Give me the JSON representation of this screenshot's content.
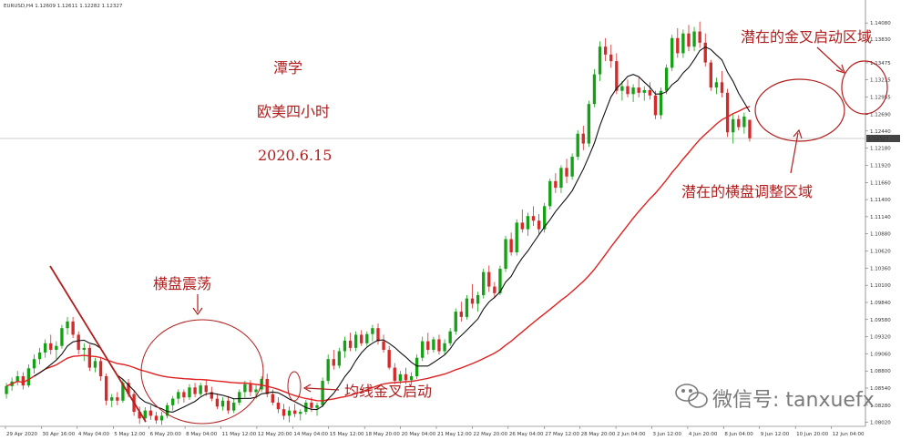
{
  "header": "EURUSD,H4  1.12609 1.12611 1.12282 1.12327",
  "watermark": "微信号: tanxuefx",
  "colors": {
    "up": "#16a016",
    "down": "#d42a2a",
    "ma_fast": "#111111",
    "ma_slow": "#e02020",
    "annotation": "#b01e1e",
    "current_price_bg": "#444444"
  },
  "annotations": {
    "author": "潭学",
    "pair_timeframe": "欧美四小时",
    "date": "2020.6.15",
    "consolidation": "横盘震荡",
    "golden_cross_start": "均线金叉启动",
    "potential_consolidation_zone": "潜在的横盘调整区域",
    "potential_golden_cross_zone": "潜在的金叉启动区域"
  },
  "chart_data": {
    "type": "candlestick",
    "symbol": "EURUSD",
    "timeframe": "H4",
    "ohlc_header": {
      "open": 1.12609,
      "high": 1.12611,
      "low": 1.12282,
      "close": 1.12327
    },
    "ylim": [
      1.0796,
      1.144
    ],
    "current_price": 1.12327,
    "y_ticks": [
      "1.14080",
      "1.13830",
      "1.13475",
      "1.13215",
      "1.12955",
      "1.12690",
      "1.12440",
      "1.12180",
      "1.11920",
      "1.11660",
      "1.11400",
      "1.11140",
      "1.10880",
      "1.10620",
      "1.10360",
      "1.10100",
      "1.09840",
      "1.09580",
      "1.09320",
      "1.09060",
      "1.08800",
      "1.08540",
      "1.08280",
      "1.08020"
    ],
    "x_ticks": [
      "29 Apr 2020",
      "30 Apr 16:00",
      "4 May 04:00",
      "5 May 12:00",
      "6 May 20:00",
      "8 May 04:00",
      "11 May 12:00",
      "12 May 20:00",
      "14 May 04:00",
      "15 May 12:00",
      "18 May 20:00",
      "20 May 04:00",
      "21 May 12:00",
      "22 May 20:00",
      "26 May 04:00",
      "27 May 12:00",
      "28 May 20:00",
      "2 Jun 04:00",
      "3 Jun 12:00",
      "4 Jun 20:00",
      "8 Jun 04:00",
      "9 Jun 12:00",
      "10 Jun 20:00",
      "12 Jun 04:00"
    ],
    "series": [
      {
        "name": "MA fast",
        "role": "ma_fast"
      },
      {
        "name": "MA slow",
        "role": "ma_slow"
      }
    ],
    "candles": [
      [
        1.0845,
        1.0862,
        1.0838,
        1.0857
      ],
      [
        1.0857,
        1.087,
        1.085,
        1.0864
      ],
      [
        1.0864,
        1.088,
        1.0858,
        1.0872
      ],
      [
        1.0872,
        1.0878,
        1.0852,
        1.0858
      ],
      [
        1.0858,
        1.089,
        1.0855,
        1.0884
      ],
      [
        1.0884,
        1.0905,
        1.0876,
        1.0898
      ],
      [
        1.0898,
        1.0915,
        1.089,
        1.0908
      ],
      [
        1.0908,
        1.0928,
        1.09,
        1.0922
      ],
      [
        1.0922,
        1.0935,
        1.0905,
        1.0912
      ],
      [
        1.0912,
        1.0925,
        1.0898,
        1.0918
      ],
      [
        1.0918,
        1.095,
        1.0914,
        1.0945
      ],
      [
        1.0945,
        1.0962,
        1.0935,
        1.0955
      ],
      [
        1.0955,
        1.0962,
        1.093,
        1.0935
      ],
      [
        1.0935,
        1.094,
        1.0905,
        1.0912
      ],
      [
        1.0912,
        1.0922,
        1.0895,
        1.0915
      ],
      [
        1.0915,
        1.092,
        1.088,
        1.0885
      ],
      [
        1.0885,
        1.09,
        1.0878,
        1.0895
      ],
      [
        1.0895,
        1.09,
        1.0865,
        1.0872
      ],
      [
        1.0872,
        1.0876,
        1.0828,
        1.0835
      ],
      [
        1.0835,
        1.0845,
        1.0825,
        1.084
      ],
      [
        1.084,
        1.0848,
        1.0828,
        1.0835
      ],
      [
        1.0835,
        1.0868,
        1.0832,
        1.0862
      ],
      [
        1.0862,
        1.0868,
        1.084,
        1.0845
      ],
      [
        1.0845,
        1.085,
        1.0812,
        1.0818
      ],
      [
        1.0818,
        1.0826,
        1.08,
        1.0808
      ],
      [
        1.0808,
        1.0825,
        1.0802,
        1.082
      ],
      [
        1.082,
        1.0828,
        1.0806,
        1.0812
      ],
      [
        1.0812,
        1.0818,
        1.08,
        1.0805
      ],
      [
        1.0805,
        1.0818,
        1.0798,
        1.0812
      ],
      [
        1.0812,
        1.0832,
        1.0808,
        1.0828
      ],
      [
        1.0828,
        1.0842,
        1.082,
        1.0838
      ],
      [
        1.0838,
        1.0852,
        1.083,
        1.0848
      ],
      [
        1.0848,
        1.0852,
        1.0832,
        1.084
      ],
      [
        1.084,
        1.086,
        1.0836,
        1.0855
      ],
      [
        1.0855,
        1.0862,
        1.084,
        1.0845
      ],
      [
        1.0845,
        1.0862,
        1.0842,
        1.0858
      ],
      [
        1.0858,
        1.0866,
        1.0842,
        1.0848
      ],
      [
        1.0848,
        1.0856,
        1.0834,
        1.0838
      ],
      [
        1.0838,
        1.0846,
        1.0822,
        1.0826
      ],
      [
        1.0826,
        1.084,
        1.082,
        1.0835
      ],
      [
        1.0835,
        1.0842,
        1.0815,
        1.082
      ],
      [
        1.082,
        1.0838,
        1.0816,
        1.0832
      ],
      [
        1.0832,
        1.0852,
        1.0828,
        1.0848
      ],
      [
        1.0848,
        1.0865,
        1.084,
        1.086
      ],
      [
        1.086,
        1.0866,
        1.0842,
        1.0848
      ],
      [
        1.0848,
        1.0858,
        1.0838,
        1.0852
      ],
      [
        1.0852,
        1.0872,
        1.0848,
        1.0868
      ],
      [
        1.0868,
        1.0876,
        1.084,
        1.0845
      ],
      [
        1.0845,
        1.0852,
        1.0828,
        1.0832
      ],
      [
        1.0832,
        1.084,
        1.0816,
        1.0822
      ],
      [
        1.0822,
        1.083,
        1.0806,
        1.0812
      ],
      [
        1.0812,
        1.0826,
        1.0802,
        1.082
      ],
      [
        1.082,
        1.083,
        1.081,
        1.0815
      ],
      [
        1.0815,
        1.0822,
        1.0805,
        1.0818
      ],
      [
        1.0818,
        1.0836,
        1.0814,
        1.0832
      ],
      [
        1.0832,
        1.084,
        1.0818,
        1.0824
      ],
      [
        1.0824,
        1.0832,
        1.0812,
        1.0828
      ],
      [
        1.0828,
        1.087,
        1.0825,
        1.0865
      ],
      [
        1.0865,
        1.0905,
        1.086,
        1.0898
      ],
      [
        1.0898,
        1.0912,
        1.0882,
        1.0888
      ],
      [
        1.0888,
        1.0915,
        1.0884,
        1.091
      ],
      [
        1.091,
        1.0932,
        1.09,
        1.0926
      ],
      [
        1.0926,
        1.0938,
        1.091,
        1.0915
      ],
      [
        1.0915,
        1.094,
        1.091,
        1.0935
      ],
      [
        1.0935,
        1.0942,
        1.0918,
        1.0922
      ],
      [
        1.0922,
        1.094,
        1.0918,
        1.0936
      ],
      [
        1.0936,
        1.095,
        1.0925,
        1.0945
      ],
      [
        1.0945,
        1.0952,
        1.092,
        1.0925
      ],
      [
        1.0925,
        1.0935,
        1.0908,
        1.0912
      ],
      [
        1.0912,
        1.0918,
        1.0882,
        1.0885
      ],
      [
        1.0885,
        1.0892,
        1.086,
        1.0865
      ],
      [
        1.0865,
        1.088,
        1.086,
        1.0875
      ],
      [
        1.0875,
        1.0885,
        1.086,
        1.0866
      ],
      [
        1.0866,
        1.0878,
        1.0858,
        1.0872
      ],
      [
        1.0872,
        1.0905,
        1.0868,
        1.09
      ],
      [
        1.09,
        1.0932,
        1.0895,
        1.0925
      ],
      [
        1.0925,
        1.0938,
        1.0905,
        1.0912
      ],
      [
        1.0912,
        1.0932,
        1.0908,
        1.0928
      ],
      [
        1.0928,
        1.0935,
        1.0905,
        1.091
      ],
      [
        1.091,
        1.0928,
        1.0905,
        1.0922
      ],
      [
        1.0922,
        1.0945,
        1.0918,
        1.094
      ],
      [
        1.094,
        1.0975,
        1.0935,
        1.097
      ],
      [
        1.097,
        1.0985,
        1.0955,
        1.0962
      ],
      [
        1.0962,
        1.0995,
        1.0958,
        1.099
      ],
      [
        1.099,
        1.1012,
        1.0975,
        1.0982
      ],
      [
        1.0982,
        1.1,
        1.097,
        1.0995
      ],
      [
        1.0995,
        1.1035,
        1.099,
        1.103
      ],
      [
        1.103,
        1.104,
        1.1,
        1.1008
      ],
      [
        1.1008,
        1.1015,
        1.099,
        1.0998
      ],
      [
        1.0998,
        1.104,
        1.0995,
        1.1035
      ],
      [
        1.1035,
        1.1085,
        1.103,
        1.108
      ],
      [
        1.108,
        1.109,
        1.1055,
        1.106
      ],
      [
        1.106,
        1.111,
        1.1055,
        1.1105
      ],
      [
        1.1105,
        1.1125,
        1.109,
        1.1095
      ],
      [
        1.1095,
        1.112,
        1.1085,
        1.1115
      ],
      [
        1.1115,
        1.113,
        1.11,
        1.1108
      ],
      [
        1.1108,
        1.1118,
        1.1088,
        1.1095
      ],
      [
        1.1095,
        1.1135,
        1.109,
        1.113
      ],
      [
        1.113,
        1.1172,
        1.1125,
        1.1168
      ],
      [
        1.1168,
        1.118,
        1.115,
        1.1158
      ],
      [
        1.1158,
        1.1192,
        1.115,
        1.1188
      ],
      [
        1.1188,
        1.1202,
        1.1165,
        1.1175
      ],
      [
        1.1175,
        1.121,
        1.117,
        1.1205
      ],
      [
        1.1205,
        1.1245,
        1.12,
        1.124
      ],
      [
        1.124,
        1.1252,
        1.1215,
        1.1225
      ],
      [
        1.1225,
        1.129,
        1.122,
        1.1285
      ],
      [
        1.1285,
        1.1338,
        1.128,
        1.133
      ],
      [
        1.133,
        1.138,
        1.132,
        1.1372
      ],
      [
        1.1372,
        1.1385,
        1.135,
        1.136
      ],
      [
        1.136,
        1.1375,
        1.134,
        1.135
      ],
      [
        1.135,
        1.1362,
        1.13,
        1.1305
      ],
      [
        1.1305,
        1.132,
        1.129,
        1.1312
      ],
      [
        1.1312,
        1.1322,
        1.1295,
        1.13
      ],
      [
        1.13,
        1.1315,
        1.1288,
        1.131
      ],
      [
        1.131,
        1.1325,
        1.1295,
        1.1302
      ],
      [
        1.1302,
        1.1312,
        1.129,
        1.1306
      ],
      [
        1.1306,
        1.1318,
        1.1292,
        1.1298
      ],
      [
        1.1298,
        1.1305,
        1.1262,
        1.1268
      ],
      [
        1.1268,
        1.131,
        1.1262,
        1.1305
      ],
      [
        1.1305,
        1.1345,
        1.13,
        1.134
      ],
      [
        1.134,
        1.139,
        1.1335,
        1.1385
      ],
      [
        1.1385,
        1.14,
        1.1355,
        1.1362
      ],
      [
        1.1362,
        1.1398,
        1.1355,
        1.1392
      ],
      [
        1.1392,
        1.1405,
        1.1365,
        1.1372
      ],
      [
        1.1372,
        1.1402,
        1.1365,
        1.1395
      ],
      [
        1.1395,
        1.141,
        1.137,
        1.1378
      ],
      [
        1.1378,
        1.1392,
        1.1342,
        1.1348
      ],
      [
        1.1348,
        1.1352,
        1.1305,
        1.131
      ],
      [
        1.131,
        1.1325,
        1.13,
        1.1318
      ],
      [
        1.1318,
        1.1335,
        1.1295,
        1.1302
      ],
      [
        1.1302,
        1.1308,
        1.1235,
        1.1242
      ],
      [
        1.1242,
        1.127,
        1.1225,
        1.1262
      ],
      [
        1.1262,
        1.1268,
        1.1245,
        1.125
      ],
      [
        1.125,
        1.1272,
        1.124,
        1.1266
      ],
      [
        1.1261,
        1.1261,
        1.1228,
        1.1233
      ]
    ]
  }
}
